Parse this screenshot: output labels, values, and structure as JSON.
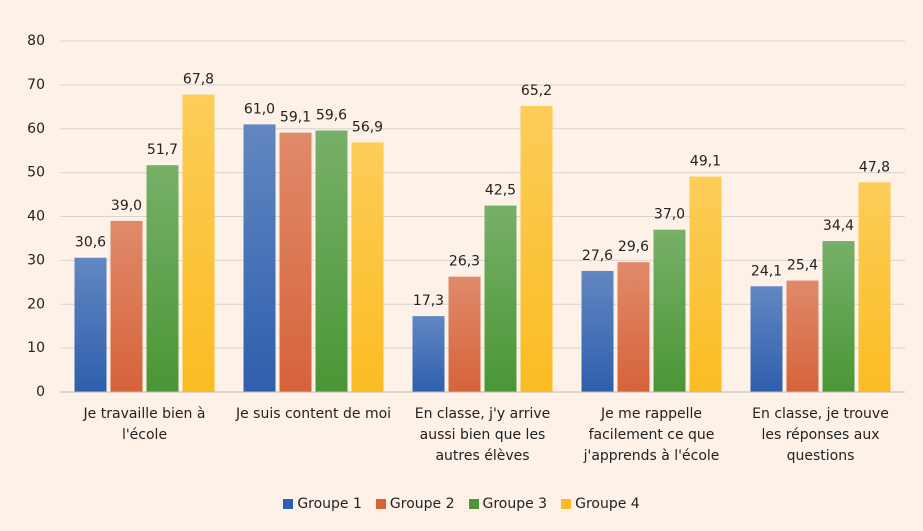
{
  "chart_data": {
    "type": "bar",
    "categories": [
      "Je travaille bien à l'école",
      "Je suis content de moi",
      "En classe, j'y arrive aussi bien que les autres élèves",
      "Je me rappelle facilement ce que j'apprends à l'école",
      "En classe, je trouve les réponses aux questions"
    ],
    "series": [
      {
        "name": "Groupe 1",
        "color": "#2e5fad",
        "values": [
          30.6,
          61.0,
          17.3,
          27.6,
          24.1
        ],
        "value_labels": [
          "30,6",
          "61,0",
          "17,3",
          "27,6",
          "24,1"
        ]
      },
      {
        "name": "Groupe 2",
        "color": "#d6633a",
        "values": [
          39.0,
          59.1,
          26.3,
          29.6,
          25.4
        ],
        "value_labels": [
          "39,0",
          "59,1",
          "26,3",
          "29,6",
          "25,4"
        ]
      },
      {
        "name": "Groupe 3",
        "color": "#4a9636",
        "values": [
          51.7,
          59.6,
          42.5,
          37.0,
          34.4
        ],
        "value_labels": [
          "51,7",
          "59,6",
          "42,5",
          "37,0",
          "34,4"
        ]
      },
      {
        "name": "Groupe 4",
        "color": "#fbbc22",
        "values": [
          67.8,
          56.9,
          65.2,
          49.1,
          47.8
        ],
        "value_labels": [
          "67,8",
          "56,9",
          "65,2",
          "49,1",
          "47,8"
        ]
      }
    ],
    "ylim": [
      0,
      80
    ],
    "yticks": [
      0,
      10,
      20,
      30,
      40,
      50,
      60,
      70,
      80
    ],
    "grid": true,
    "legend": "bottom"
  }
}
